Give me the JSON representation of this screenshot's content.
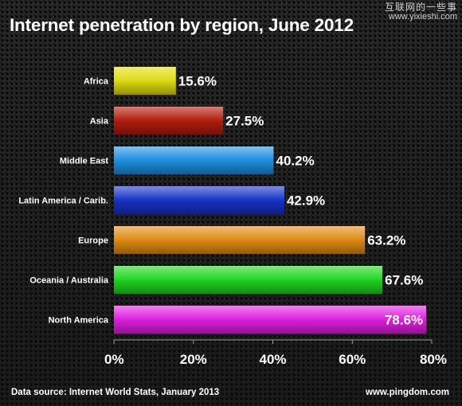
{
  "watermark": {
    "line1": "互联网的一些事",
    "line2": "www.yixieshi.com"
  },
  "footer": {
    "source": "Data source: Internet World Stats, January 2013",
    "site": "www.pingdom.com"
  },
  "chart_data": {
    "type": "bar",
    "orientation": "horizontal",
    "title": "Internet penetration by region, June 2012",
    "xlabel": "",
    "ylabel": "",
    "categories": [
      "Africa",
      "Asia",
      "Middle East",
      "Latin America / Carib.",
      "Europe",
      "Oceania / Australia",
      "North America"
    ],
    "values": [
      15.6,
      27.5,
      40.2,
      42.9,
      63.2,
      67.6,
      78.6
    ],
    "value_labels": [
      "15.6%",
      "27.5%",
      "40.2%",
      "42.9%",
      "63.2%",
      "67.6%",
      "78.6%"
    ],
    "xlim": [
      0,
      80
    ],
    "x_ticks": [
      0,
      20,
      40,
      60,
      80
    ],
    "x_tick_labels": [
      "0%",
      "20%",
      "40%",
      "60%",
      "80%"
    ],
    "bar_colors": [
      "#e0dc10",
      "#b21a0c",
      "#1c8ee0",
      "#1632c8",
      "#e08a12",
      "#1ed61e",
      "#e01ee0"
    ],
    "grid": false
  }
}
